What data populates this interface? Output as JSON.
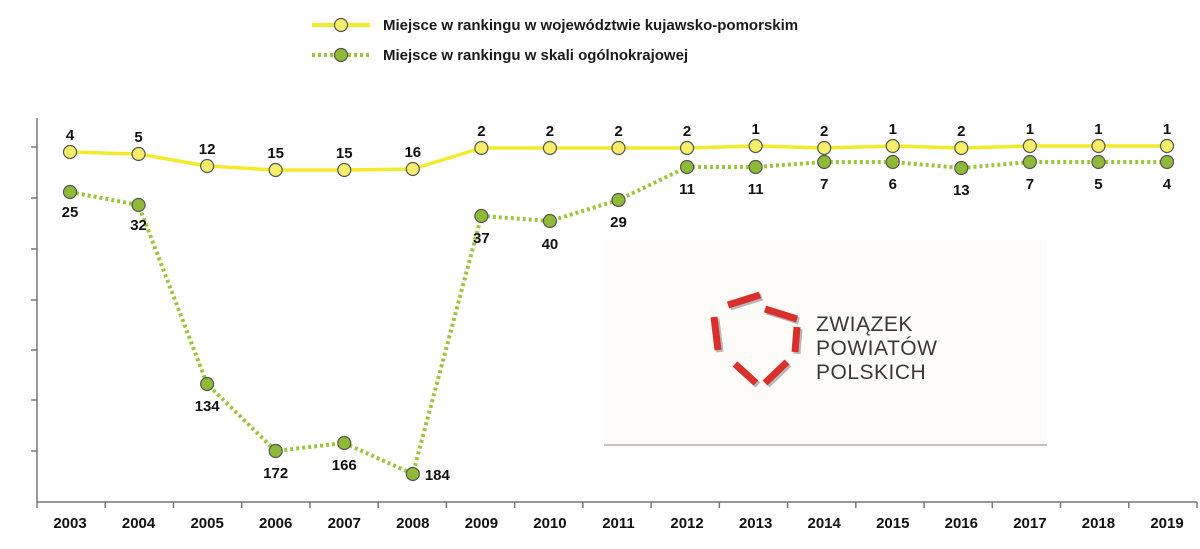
{
  "chart_data": {
    "type": "line",
    "title": "",
    "xlabel": "",
    "ylabel": "",
    "y_axis": "rank (1 at top), non-linear, no printed tick labels",
    "categories": [
      "2003",
      "2004",
      "2005",
      "2006",
      "2007",
      "2008",
      "2009",
      "2010",
      "2011",
      "2012",
      "2013",
      "2014",
      "2015",
      "2016",
      "2017",
      "2018",
      "2019"
    ],
    "series": [
      {
        "name": "Miejsce w rankingu w województwie kujawsko-pomorskim",
        "color": "#f2ea2a",
        "line_style": "solid",
        "values": [
          4,
          5,
          12,
          15,
          15,
          16,
          2,
          2,
          2,
          2,
          1,
          2,
          1,
          2,
          1,
          1,
          1
        ]
      },
      {
        "name": "Miejsce w rankingu w skali ogólnokrajowej",
        "color": "#9cc43c",
        "line_style": "dotted",
        "values": [
          25,
          32,
          134,
          172,
          166,
          184,
          37,
          40,
          29,
          11,
          11,
          7,
          6,
          13,
          7,
          5,
          4
        ]
      }
    ],
    "legend_position": "top-center",
    "grid": false
  },
  "logo": {
    "lines": [
      "ZWIĄZEK",
      "POWIATÓW",
      "POLSKICH"
    ],
    "color": "#d9302c"
  }
}
